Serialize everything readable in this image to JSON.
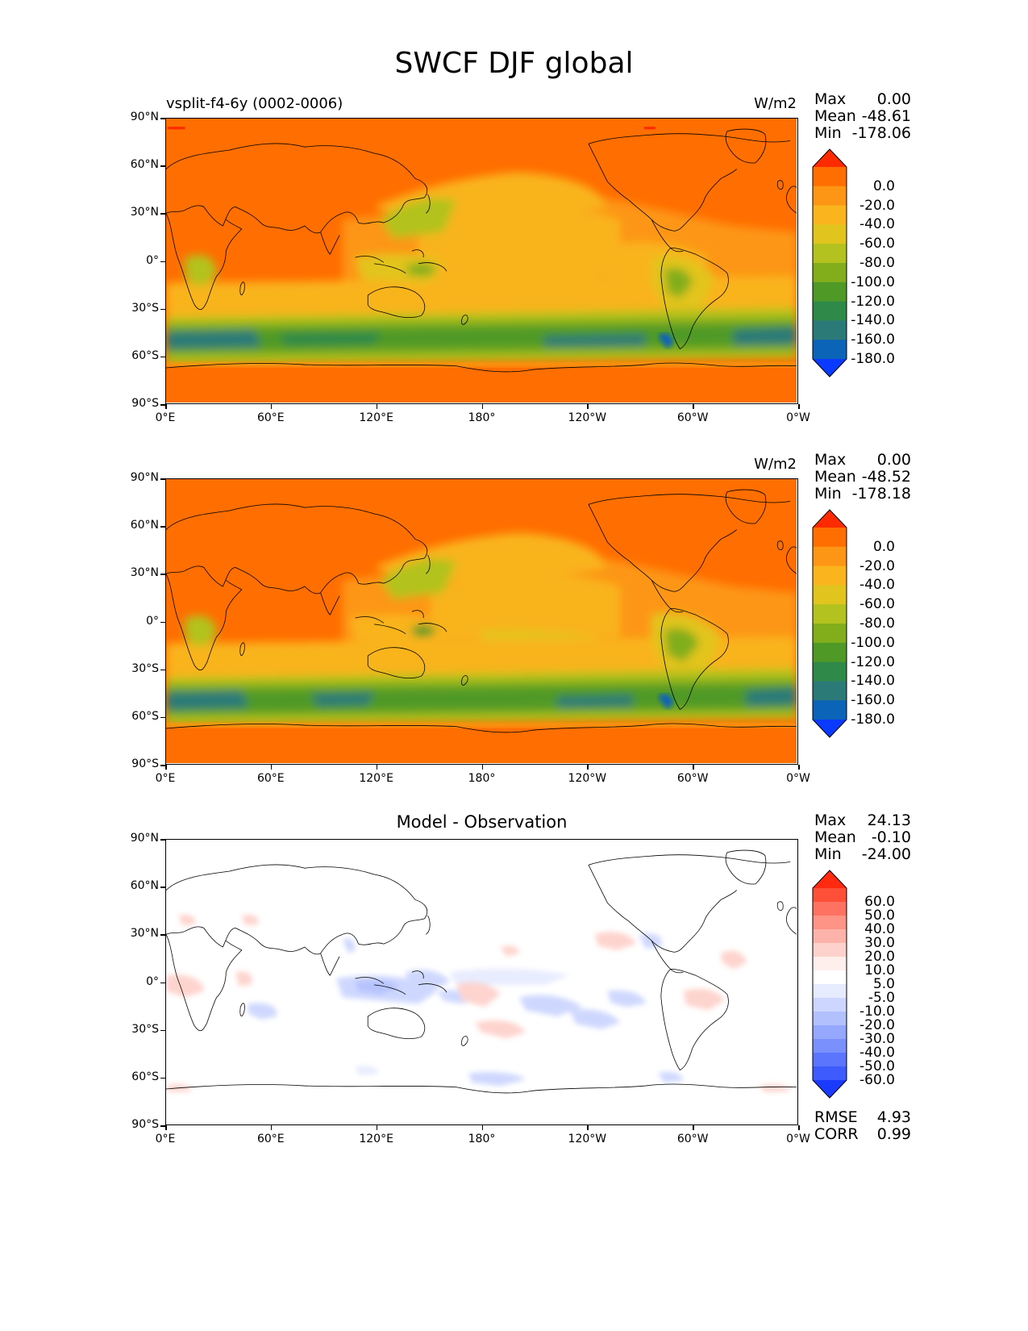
{
  "figure": {
    "title": "SWCF DJF global"
  },
  "units": "W/m2",
  "axes": {
    "lat_ticks": [
      "90°N",
      "60°N",
      "30°N",
      "0°",
      "30°S",
      "60°S",
      "90°S"
    ],
    "lon_ticks": [
      "0°E",
      "60°E",
      "120°E",
      "180°",
      "120°W",
      "60°W",
      "0°W"
    ]
  },
  "panels": [
    {
      "id": "model",
      "left_title": "vsplit-f4-6y (0002-0006)",
      "center_title": "",
      "units": "W/m2",
      "stats": [
        [
          "Max",
          "0.00"
        ],
        [
          "Mean",
          "-48.61"
        ],
        [
          "Min",
          "-178.06"
        ]
      ],
      "colorbar": {
        "labels": [
          "0.0",
          "-20.0",
          "-40.0",
          "-60.0",
          "-80.0",
          "-100.0",
          "-120.0",
          "-140.0",
          "-160.0",
          "-180.0"
        ],
        "colors": [
          "#ff2a00",
          "#ff6e00",
          "#fd9614",
          "#f9b41e",
          "#e2c41f",
          "#b3c21e",
          "#82ae1c",
          "#4f9a27",
          "#2f8a4a",
          "#2c7a78",
          "#0b64b8",
          "#0a39ff"
        ]
      }
    },
    {
      "id": "obs",
      "left_title": "",
      "center_title": "",
      "units": "W/m2",
      "stats": [
        [
          "Max",
          "0.00"
        ],
        [
          "Mean",
          "-48.52"
        ],
        [
          "Min",
          "-178.18"
        ]
      ],
      "colorbar": {
        "labels": [
          "0.0",
          "-20.0",
          "-40.0",
          "-60.0",
          "-80.0",
          "-100.0",
          "-120.0",
          "-140.0",
          "-160.0",
          "-180.0"
        ],
        "colors": [
          "#ff2a00",
          "#ff6e00",
          "#fd9614",
          "#f9b41e",
          "#e2c41f",
          "#b3c21e",
          "#82ae1c",
          "#4f9a27",
          "#2f8a4a",
          "#2c7a78",
          "#0b64b8",
          "#0a39ff"
        ]
      }
    },
    {
      "id": "diff",
      "left_title": "",
      "center_title": "Model - Observation",
      "units": "",
      "stats": [
        [
          "Max",
          "24.13"
        ],
        [
          "Mean",
          "-0.10"
        ],
        [
          "Min",
          "-24.00"
        ]
      ],
      "colorbar": {
        "labels": [
          "60.0",
          "50.0",
          "40.0",
          "30.0",
          "20.0",
          "10.0",
          "5.0",
          "-5.0",
          "-10.0",
          "-20.0",
          "-30.0",
          "-40.0",
          "-50.0",
          "-60.0"
        ],
        "colors": [
          "#ff2a10",
          "#fe5038",
          "#fe7262",
          "#fe9486",
          "#feb3aa",
          "#fed2cc",
          "#feeeec",
          "#ffffff",
          "#e6ebfe",
          "#ccd6fe",
          "#b2c0fd",
          "#96a8fd",
          "#7a90fd",
          "#5c75fd",
          "#3e5bfe",
          "#1a3afe"
        ]
      },
      "footer_stats": [
        [
          "RMSE",
          "4.93"
        ],
        [
          "CORR",
          "0.99"
        ]
      ]
    }
  ]
}
